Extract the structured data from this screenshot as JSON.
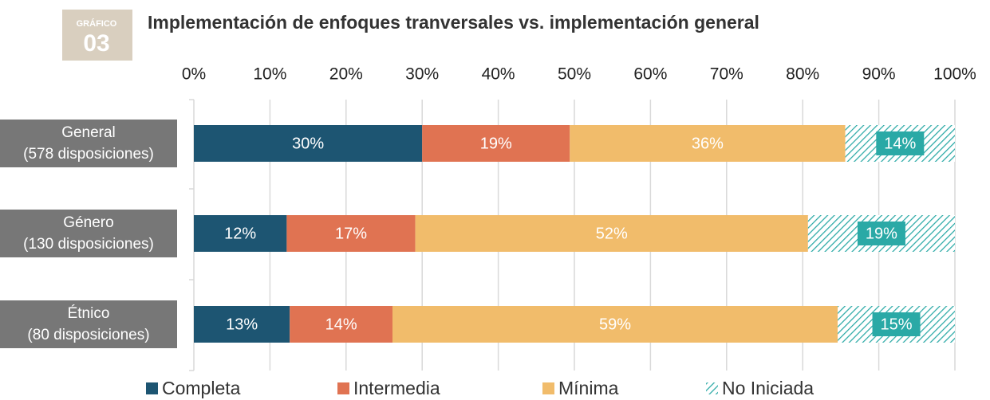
{
  "chart_data": {
    "type": "stacked-barh",
    "badge": {
      "label": "GRÁFICO",
      "number": "03"
    },
    "title": "Implementación de enfoques tranversales vs. implementación general",
    "categories": [
      "General\n(578 disposiciones)",
      "Género\n(130 disposiciones)",
      "Étnico\n(80 disposiciones)"
    ],
    "series": [
      {
        "name": "Completa",
        "color": "#1d5572",
        "values": [
          30.0,
          12.2,
          12.6
        ],
        "value_labels": [
          "30%",
          "12%",
          "13%"
        ]
      },
      {
        "name": "Intermedia",
        "color": "#e07352",
        "values": [
          19.4,
          16.9,
          13.5
        ],
        "value_labels": [
          "19%",
          "17%",
          "14%"
        ]
      },
      {
        "name": "Mínima",
        "color": "#f1bc6b",
        "values": [
          36.2,
          51.6,
          58.5
        ],
        "value_labels": [
          "36%",
          "52%",
          "59%"
        ]
      },
      {
        "name": "No Iniciada",
        "color": "#2aa9a6",
        "hatch": true,
        "values": [
          14.4,
          19.3,
          15.4
        ],
        "value_labels": [
          "14%",
          "19%",
          "15%"
        ]
      }
    ],
    "xlim": [
      0,
      100
    ],
    "xticks": [
      {
        "value": 0,
        "label": "0%"
      },
      {
        "value": 10,
        "label": "10%"
      },
      {
        "value": 20,
        "label": "20%"
      },
      {
        "value": 30,
        "label": "30%"
      },
      {
        "value": 40,
        "label": "40%"
      },
      {
        "value": 50,
        "label": "50%"
      },
      {
        "value": 60,
        "label": "60%"
      },
      {
        "value": 70,
        "label": "70%"
      },
      {
        "value": 80,
        "label": "80%"
      },
      {
        "value": 90,
        "label": "90%"
      },
      {
        "value": 100,
        "label": "100%"
      }
    ],
    "grid": true,
    "legend": "bottom"
  }
}
